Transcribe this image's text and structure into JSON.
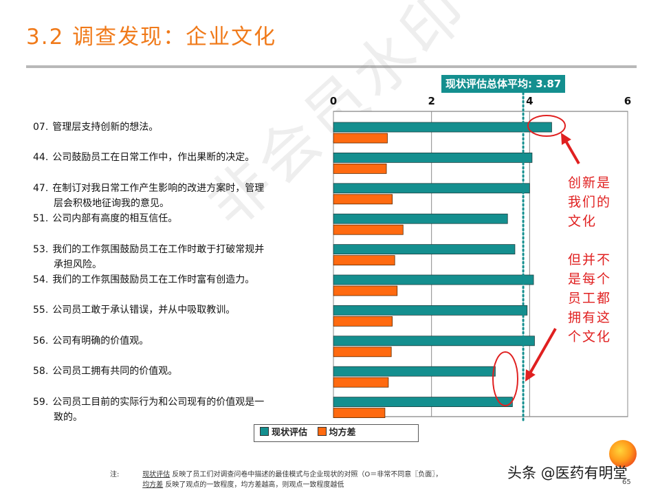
{
  "title": "3.2 调查发现：企业文化",
  "watermark": "非会员水印",
  "average_box": "现状评估总体平均: 3.87",
  "annotations": {
    "top": [
      "创新是",
      "我们的",
      "文化"
    ],
    "bottom": [
      "但并不",
      "是每个",
      "员工都",
      "拥有这",
      "个文化"
    ]
  },
  "legend": {
    "current": "现状评估",
    "variance": "均方差"
  },
  "note": {
    "prefix": "注:",
    "line1_term": "现状评估",
    "line1_text": "反映了员工们对调查问卷中描述的最佳模式与企业现状的对照（O＝非常不同意〖负面〗，",
    "line2_term": "均方差",
    "line2_text": "反映了观点的一致程度，均方差越高，则观点一致程度越低"
  },
  "brand": "头条 @医药有明堂",
  "page_number": "65",
  "colors": {
    "title": "#f07a1a",
    "current_bar": "#148f8f",
    "variance_bar": "#ff6a10",
    "average_line": "#148f8f",
    "annotation": "#e02020"
  },
  "questions": [
    {
      "num": "07.",
      "lines": [
        "管理层支持创新的想法。"
      ]
    },
    {
      "num": "44.",
      "lines": [
        "公司鼓励员工在日常工作中，作出果断的决定。"
      ]
    },
    {
      "num": "47.",
      "lines": [
        "在制订对我日常工作产生影响的改进方案时，管理",
        "层会积极地征询我的意见。"
      ]
    },
    {
      "num": "51.",
      "lines": [
        "公司内部有高度的相互信任。"
      ]
    },
    {
      "num": "53.",
      "lines": [
        "我们的工作氛围鼓励员工在工作时敢于打破常规并",
        "承担风险。"
      ]
    },
    {
      "num": "54.",
      "lines": [
        "我们的工作氛围鼓励员工在工作时富有创造力。"
      ]
    },
    {
      "num": "55.",
      "lines": [
        "公司员工敢于承认错误，并从中吸取教训。"
      ]
    },
    {
      "num": "56.",
      "lines": [
        "公司有明确的价值观。"
      ]
    },
    {
      "num": "58.",
      "lines": [
        "公司员工拥有共同的价值观。"
      ]
    },
    {
      "num": "59.",
      "lines": [
        "公司员工目前的实际行为和公司现有的价值观是一",
        "致的。"
      ]
    }
  ],
  "chart_data": {
    "type": "bar",
    "orientation": "horizontal",
    "categories": [
      "07.",
      "44.",
      "47.",
      "51.",
      "53.",
      "54.",
      "55.",
      "56.",
      "58.",
      "59."
    ],
    "series": [
      {
        "name": "现状评估",
        "values": [
          4.45,
          4.05,
          4.0,
          3.55,
          3.7,
          4.08,
          3.95,
          4.1,
          3.3,
          3.65
        ]
      },
      {
        "name": "均方差",
        "values": [
          1.1,
          1.08,
          1.2,
          1.42,
          1.25,
          1.3,
          1.2,
          1.18,
          1.12,
          1.05
        ]
      }
    ],
    "xlim": [
      0,
      6
    ],
    "xticks": [
      "0",
      "2",
      "4",
      "6"
    ],
    "average": 3.87,
    "grid": "vertical",
    "legend_position": "bottom"
  }
}
